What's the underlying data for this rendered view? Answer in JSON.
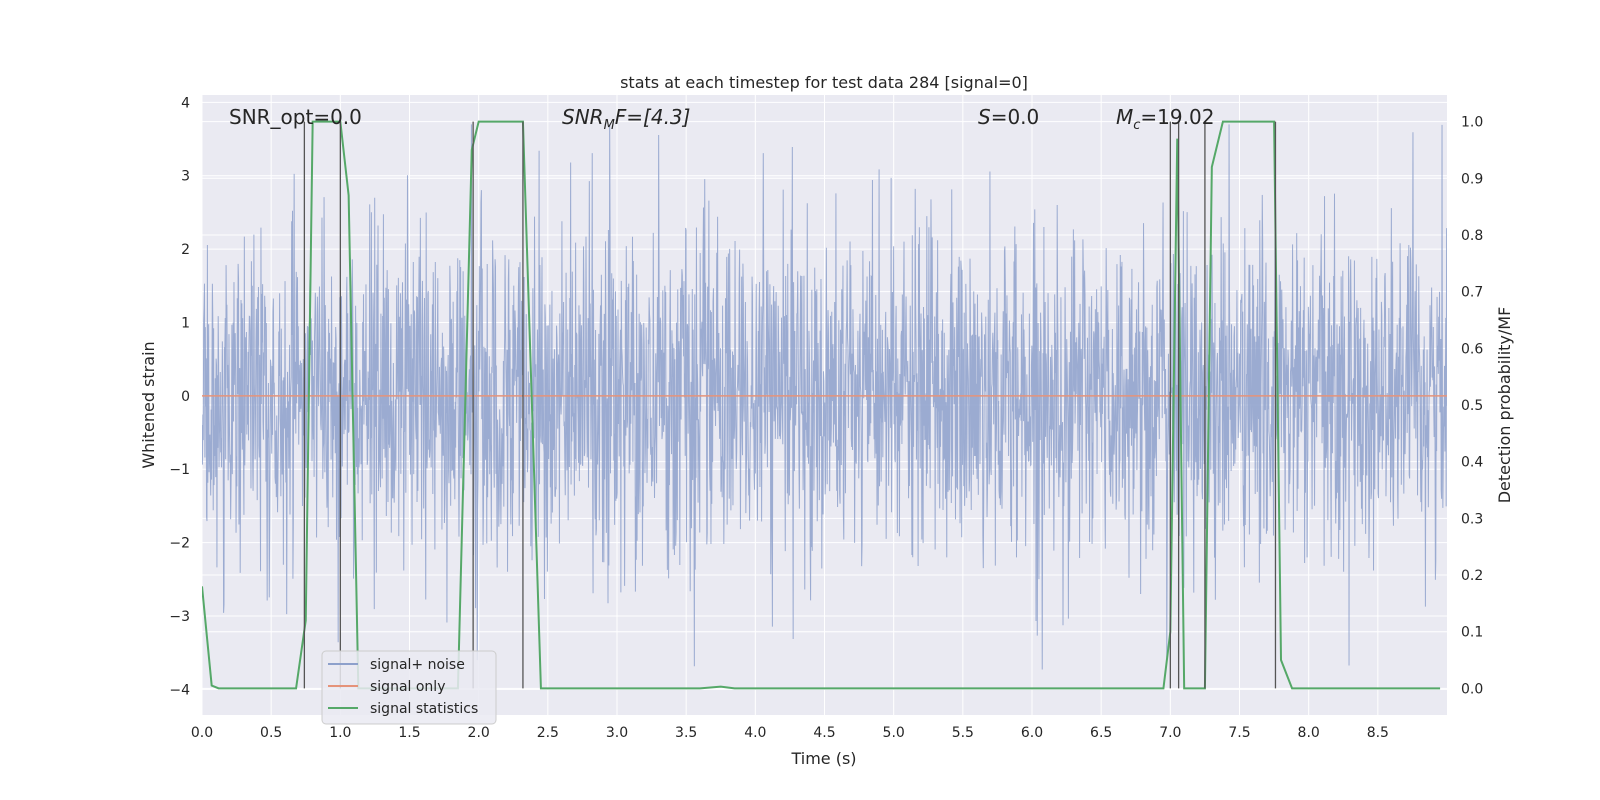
{
  "chart_data": {
    "type": "line",
    "title": "stats at each timestep for test data 284 [signal=0]",
    "xlabel": "Time (s)",
    "ylabel": "Whitened strain",
    "y2label": "Detection probability/MF",
    "xlim": [
      0.0,
      9.0
    ],
    "ylim": [
      -4.35,
      4.1
    ],
    "y2lim": [
      -0.047,
      1.047
    ],
    "xticks": [
      0.0,
      0.5,
      1.0,
      1.5,
      2.0,
      2.5,
      3.0,
      3.5,
      4.0,
      4.5,
      5.0,
      5.5,
      6.0,
      6.5,
      7.0,
      7.5,
      8.0,
      8.5
    ],
    "xtick_labels": [
      "0.0",
      "0.5",
      "1.0",
      "1.5",
      "2.0",
      "2.5",
      "3.0",
      "3.5",
      "4.0",
      "4.5",
      "5.0",
      "5.5",
      "6.0",
      "6.5",
      "7.0",
      "7.5",
      "8.0",
      "8.5"
    ],
    "yticks": [
      -4,
      -3,
      -2,
      -1,
      0,
      1,
      2,
      3,
      4
    ],
    "ytick_labels": [
      "−4",
      "−3",
      "−2",
      "−1",
      "0",
      "1",
      "2",
      "3",
      "4"
    ],
    "y2ticks": [
      0.0,
      0.1,
      0.2,
      0.3,
      0.4,
      0.5,
      0.6,
      0.7,
      0.8,
      0.9,
      1.0
    ],
    "y2tick_labels": [
      "0.0",
      "0.1",
      "0.2",
      "0.3",
      "0.4",
      "0.5",
      "0.6",
      "0.7",
      "0.8",
      "0.9",
      "1.0"
    ],
    "grid": true,
    "legend_position": "lower-left",
    "annotations": {
      "snr_opt": "SNR_opt=0.0",
      "snr_mf_main": "SNR",
      "snr_mf_sub": "M",
      "snr_mf_rest": "F=[4.3]",
      "s_main": "S",
      "s_rest": "=0.0",
      "mc_main": "M",
      "mc_sub": "c",
      "mc_rest": "=19.02"
    },
    "series": [
      {
        "name": "signal+ noise",
        "color": "#8da0cb",
        "kind": "noise",
        "amplitude_typical": 1.3,
        "extremes": [
          3.7,
          -4.0
        ]
      },
      {
        "name": "signal only",
        "color": "#e5937a",
        "x": [
          0.0,
          9.0
        ],
        "y": [
          0.0,
          0.0
        ]
      },
      {
        "name": "signal statistics",
        "color": "#55a868",
        "x": [
          0.0,
          0.07,
          0.12,
          0.2,
          0.68,
          0.75,
          0.8,
          1.0,
          1.06,
          1.13,
          1.2,
          1.5,
          1.85,
          1.95,
          2.0,
          2.32,
          2.45,
          3.0,
          3.6,
          3.75,
          3.85,
          4.5,
          5.5,
          6.5,
          6.95,
          7.0,
          7.05,
          7.1,
          7.25,
          7.3,
          7.38,
          7.75,
          7.8,
          7.88,
          8.95
        ],
        "y": [
          0.18,
          0.005,
          0.0,
          0.0,
          0.0,
          0.12,
          1.0,
          1.0,
          0.87,
          0.0,
          0.0,
          0.0,
          0.0,
          0.95,
          1.0,
          1.0,
          0.0,
          0.0,
          0.0,
          0.003,
          0.0,
          0.0,
          0.0,
          0.0,
          0.0,
          0.1,
          0.97,
          0.0,
          0.0,
          0.92,
          1.0,
          1.0,
          0.05,
          0.0,
          0.0
        ]
      }
    ],
    "vertical_markers": [
      0.74,
      1.0,
      1.96,
      2.32,
      7.0,
      7.06,
      7.25,
      7.76
    ]
  }
}
